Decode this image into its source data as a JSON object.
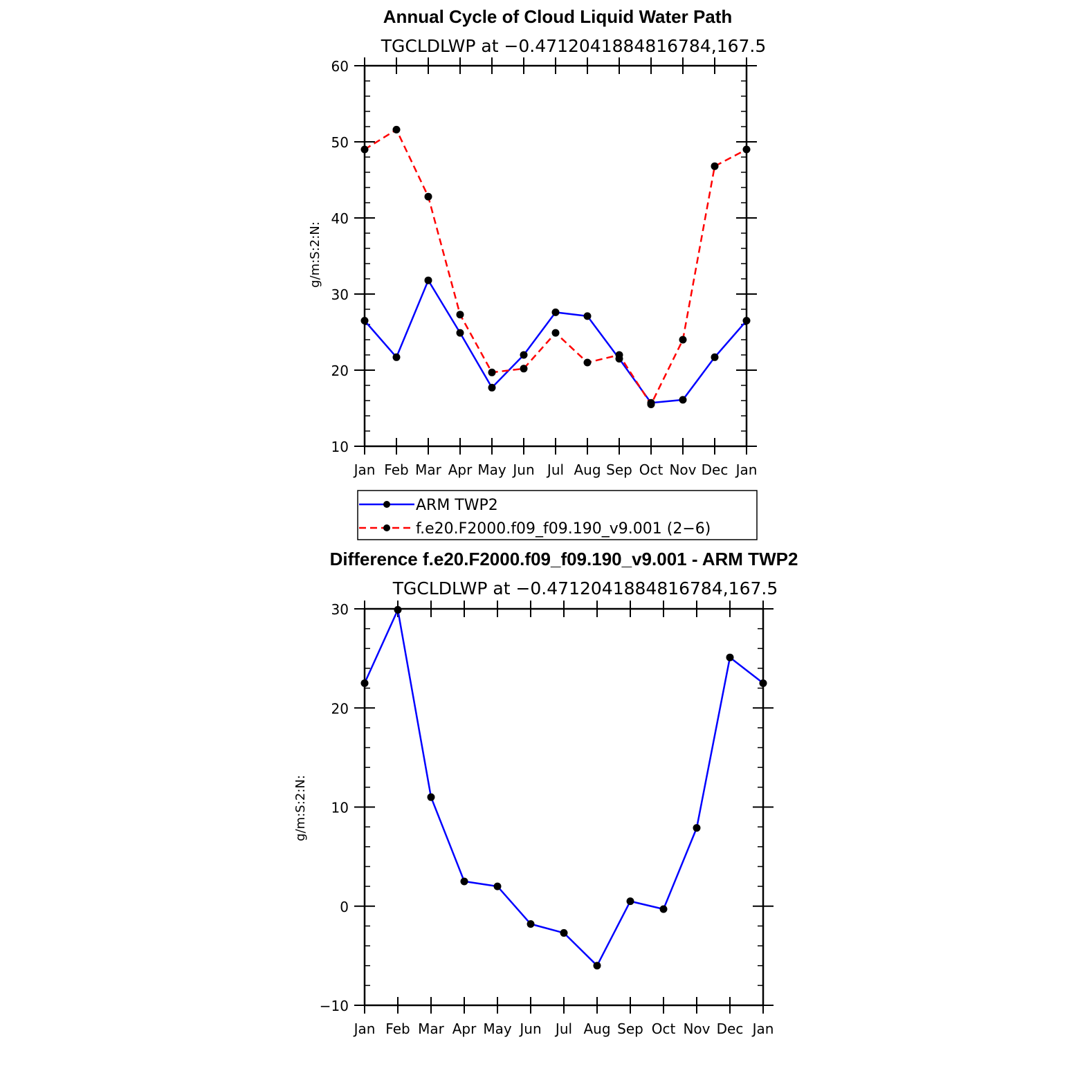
{
  "chart_data": [
    {
      "type": "line",
      "title": "Annual Cycle of Cloud Liquid Water Path",
      "subtitle": "TGCLDLWP at −0.4712041884816784,167.5",
      "ylabel": "g/m:S:2:N:",
      "ylim": [
        10,
        60
      ],
      "yticks": [
        10,
        20,
        30,
        40,
        50,
        60
      ],
      "ytick_labels": [
        "10",
        "20",
        "30",
        "40",
        "50",
        "60"
      ],
      "categories": [
        "Jan",
        "Feb",
        "Mar",
        "Apr",
        "May",
        "Jun",
        "Jul",
        "Aug",
        "Sep",
        "Oct",
        "Nov",
        "Dec",
        "Jan"
      ],
      "series": [
        {
          "name": "ARM TWP2",
          "color": "#0000ff",
          "dash": "solid",
          "values": [
            26.5,
            21.7,
            31.8,
            24.9,
            17.7,
            22.0,
            27.6,
            27.1,
            21.5,
            15.7,
            16.1,
            21.7,
            26.5
          ]
        },
        {
          "name": "f.e20.F2000.f09_f09.190_v9.001 (2−6)",
          "color": "#ff0000",
          "dash": "dashed",
          "values": [
            49.0,
            51.6,
            42.8,
            27.3,
            19.7,
            20.2,
            24.9,
            21.0,
            22.0,
            15.5,
            24.0,
            46.8,
            49.0
          ]
        }
      ],
      "legend": {
        "position": "below",
        "entries": [
          "ARM TWP2",
          "f.e20.F2000.f09_f09.190_v9.001 (2−6)"
        ]
      }
    },
    {
      "type": "line",
      "title": "Difference f.e20.F2000.f09_f09.190_v9.001 - ARM TWP2",
      "subtitle": "TGCLDLWP at −0.4712041884816784,167.5",
      "ylabel": "g/m:S:2:N:",
      "ylim": [
        -10,
        30
      ],
      "yticks": [
        -10,
        0,
        10,
        20,
        30
      ],
      "ytick_labels": [
        "−10",
        "0",
        "10",
        "20",
        "30"
      ],
      "categories": [
        "Jan",
        "Feb",
        "Mar",
        "Apr",
        "May",
        "Jun",
        "Jul",
        "Aug",
        "Sep",
        "Oct",
        "Nov",
        "Dec",
        "Jan"
      ],
      "series": [
        {
          "name": "Difference",
          "color": "#0000ff",
          "dash": "solid",
          "values": [
            22.5,
            29.9,
            11.0,
            2.5,
            2.0,
            -1.8,
            -2.7,
            -6.0,
            0.5,
            -0.3,
            7.9,
            25.1,
            22.5
          ]
        }
      ]
    }
  ]
}
